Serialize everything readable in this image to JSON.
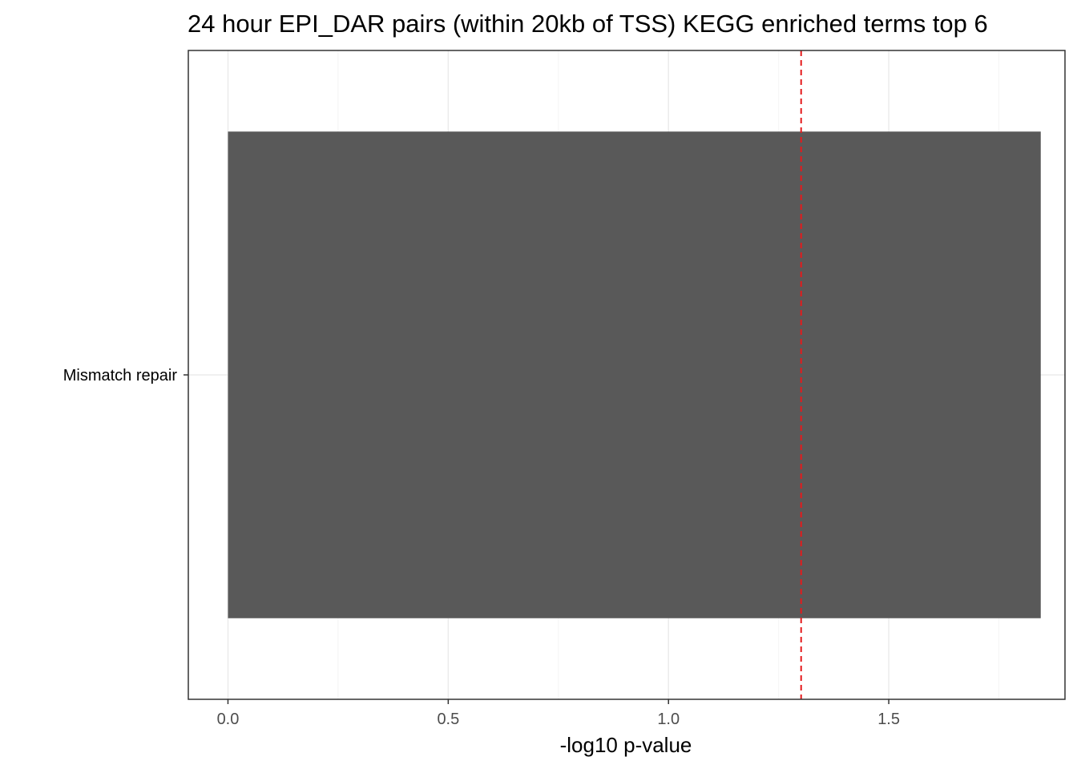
{
  "chart_data": {
    "type": "bar",
    "orientation": "horizontal",
    "title": "24 hour EPI_DAR pairs (within 20kb of TSS) KEGG enriched terms top 6",
    "xlabel": "-log10 p-value",
    "ylabel": "",
    "categories": [
      "Mismatch repair"
    ],
    "values": [
      1.845
    ],
    "xlim": [
      -0.09,
      1.9
    ],
    "xticks": [
      0.0,
      0.5,
      1.0,
      1.5
    ],
    "xtick_labels": [
      "0.0",
      "0.5",
      "1.0",
      "1.5"
    ],
    "minor_gridlines": [
      0.25,
      0.75,
      1.25,
      1.75
    ],
    "threshold_line": 1.30103,
    "grid": true,
    "legend": "none",
    "colors": {
      "bar": "#595959",
      "threshold": "#e41a1c",
      "grid_major": "#ebebeb",
      "grid_minor": "#f4f4f4",
      "panel_border": "#333333",
      "tick_text": "#4d4d4d"
    }
  }
}
